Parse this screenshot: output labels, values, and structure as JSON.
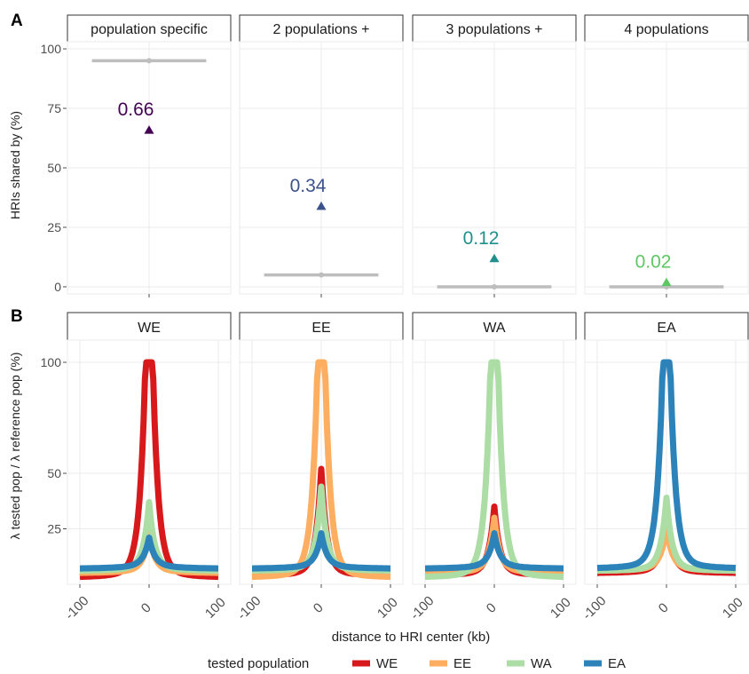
{
  "panel_letters": {
    "a": "A",
    "b": "B"
  },
  "colors": {
    "WE": "#d7191c",
    "EE": "#fdae61",
    "WA": "#abdda4",
    "EA": "#2b83ba",
    "label_population_specific": "#440154",
    "label_2_populations": "#3b528b",
    "label_3_populations": "#21908d",
    "label_4_populations": "#5dc863",
    "range_bar": "#bdbdbd",
    "grid": "#ebebeb",
    "facet_border": "#333333"
  },
  "legend": {
    "title": "tested population",
    "items": [
      {
        "label": "WE",
        "color": "#d7191c"
      },
      {
        "label": "EE",
        "color": "#fdae61"
      },
      {
        "label": "WA",
        "color": "#abdda4"
      },
      {
        "label": "EA",
        "color": "#2b83ba"
      }
    ]
  },
  "chart_data": [
    {
      "panel": "A",
      "type": "scatter",
      "ylabel": "HRIs shared by (%)",
      "xlabel": "",
      "ylim": [
        -3,
        103
      ],
      "yticks": [
        0,
        25,
        50,
        75,
        100
      ],
      "facets": [
        {
          "title": "population specific",
          "point": 66,
          "label": "0.66",
          "label_color": "#440154",
          "range_y": 95,
          "range_x": [
            -70,
            70
          ]
        },
        {
          "title": "2 populations +",
          "point": 34,
          "label": "0.34",
          "label_color": "#3b528b",
          "range_y": 5,
          "range_x": [
            -70,
            70
          ]
        },
        {
          "title": "3 populations +",
          "point": 12,
          "label": "0.12",
          "label_color": "#21908d",
          "range_y": 0,
          "range_x": [
            -70,
            70
          ]
        },
        {
          "title": "4 populations",
          "point": 2,
          "label": "0.02",
          "label_color": "#5dc863",
          "range_y": 0,
          "range_x": [
            -70,
            70
          ]
        }
      ]
    },
    {
      "panel": "B",
      "type": "line",
      "xlabel": "distance to HRI center (kb)",
      "ylabel": "λ tested pop / λ reference pop (%)",
      "xlim": [
        -100,
        100
      ],
      "xticks": [
        "-100",
        "0",
        "100"
      ],
      "xtick_values": [
        -100,
        0,
        100
      ],
      "ylim": [
        0,
        110
      ],
      "yticks": [
        25,
        50,
        100
      ],
      "facets": [
        {
          "title": "WE",
          "series": [
            {
              "name": "WE",
              "peak": 100,
              "edge": 3
            },
            {
              "name": "EE",
              "peak": 21,
              "edge": 5
            },
            {
              "name": "WA",
              "peak": 35,
              "edge": 6
            },
            {
              "name": "EA",
              "peak": 19,
              "edge": 7
            }
          ]
        },
        {
          "title": "EE",
          "series": [
            {
              "name": "WE",
              "peak": 50,
              "edge": 4
            },
            {
              "name": "EE",
              "peak": 100,
              "edge": 3
            },
            {
              "name": "WA",
              "peak": 42,
              "edge": 6
            },
            {
              "name": "EA",
              "peak": 21,
              "edge": 7
            }
          ]
        },
        {
          "title": "WA",
          "series": [
            {
              "name": "WE",
              "peak": 33,
              "edge": 4
            },
            {
              "name": "EE",
              "peak": 28,
              "edge": 5
            },
            {
              "name": "WA",
              "peak": 100,
              "edge": 3
            },
            {
              "name": "EA",
              "peak": 21,
              "edge": 7
            }
          ]
        },
        {
          "title": "EA",
          "series": [
            {
              "name": "WE",
              "peak": 30,
              "edge": 5
            },
            {
              "name": "EE",
              "peak": 24,
              "edge": 6
            },
            {
              "name": "WA",
              "peak": 37,
              "edge": 6
            },
            {
              "name": "EA",
              "peak": 100,
              "edge": 7
            }
          ]
        }
      ]
    }
  ]
}
